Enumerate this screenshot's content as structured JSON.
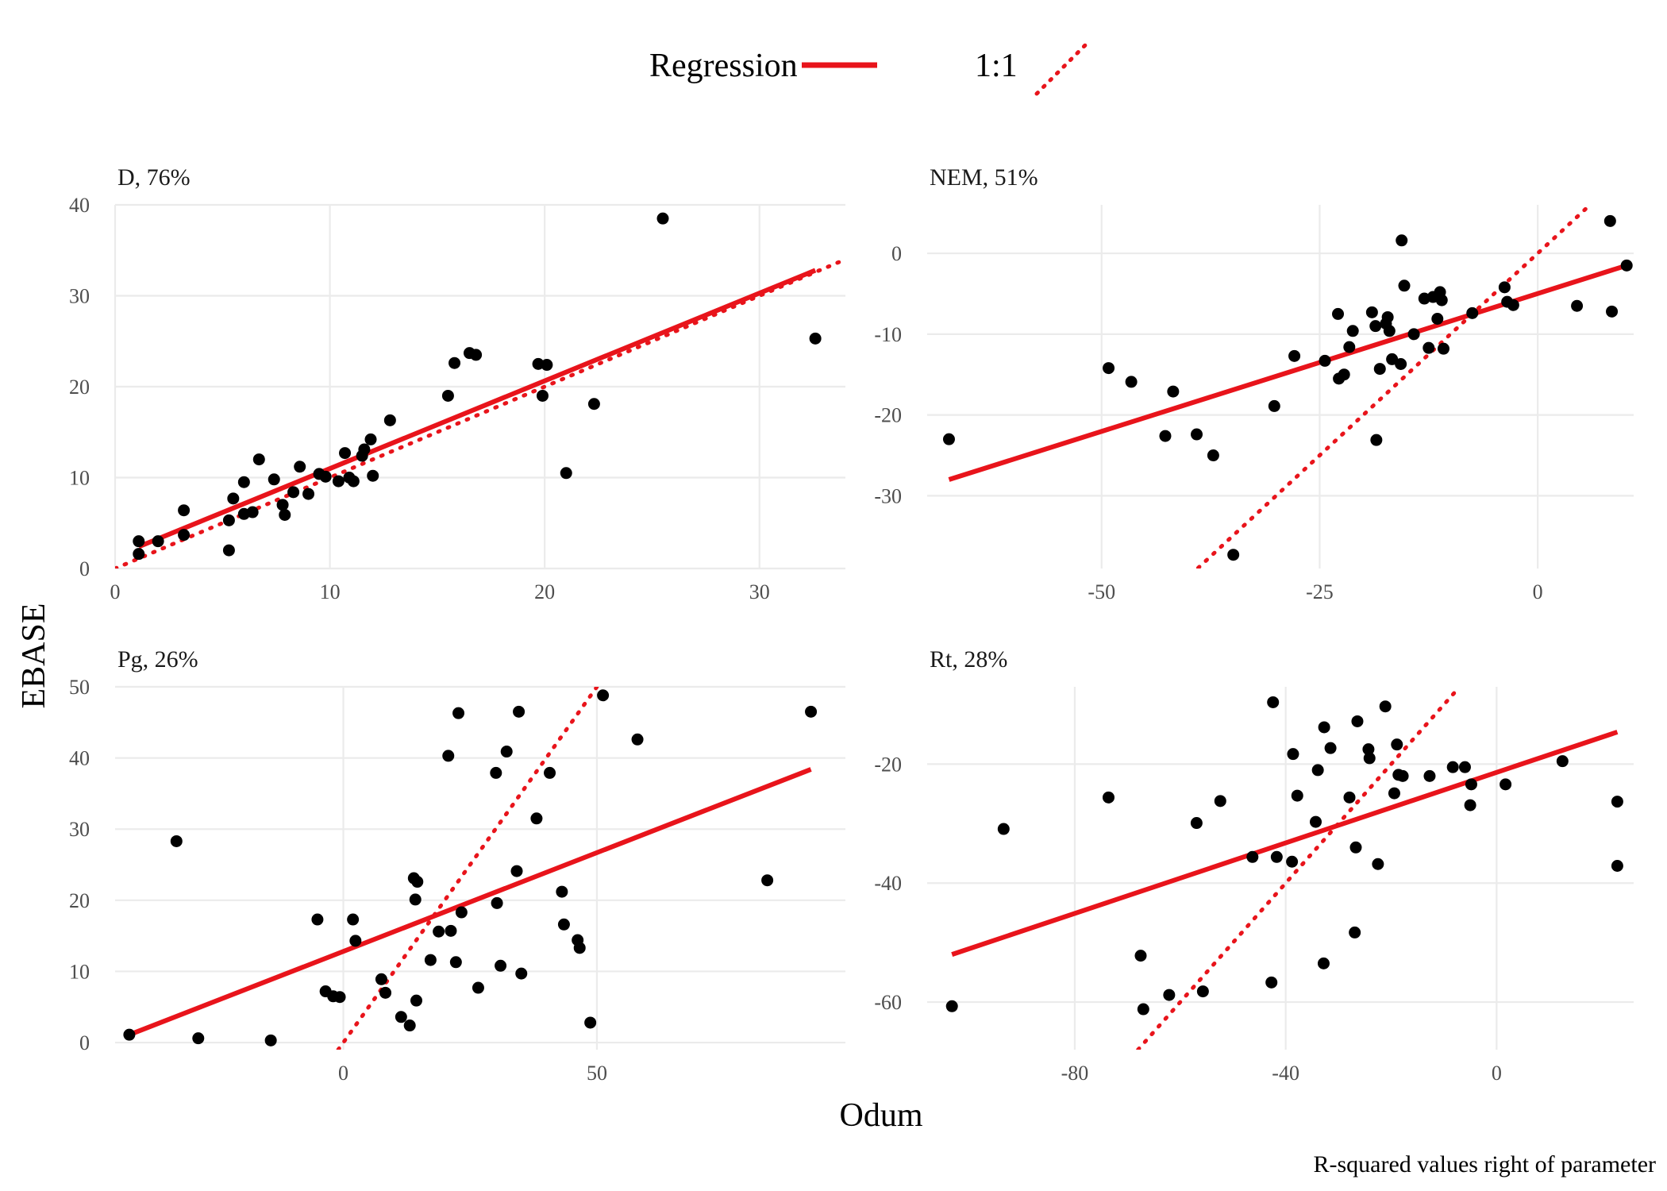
{
  "legend": {
    "items": [
      {
        "label": "Regression",
        "style": "solid"
      },
      {
        "label": "1:1",
        "style": "dotted"
      }
    ]
  },
  "axis_titles": {
    "x": "Odum",
    "y": "EBASE"
  },
  "caption": "R-squared values right of parameter",
  "colors": {
    "line": "#e8141b",
    "point": "#000000",
    "grid": "#ebebeb"
  },
  "chart_data": [
    {
      "type": "scatter",
      "title": "D, 76%",
      "xlabel": "Odum",
      "ylabel": "EBASE",
      "xlim": [
        0,
        34
      ],
      "ylim": [
        0,
        40
      ],
      "xticks": [
        0,
        10,
        20,
        30
      ],
      "yticks": [
        0,
        10,
        20,
        30,
        40
      ],
      "regression": {
        "x": [
          1.1,
          32.6
        ],
        "y": [
          2.4,
          32.8
        ]
      },
      "identity": [
        0,
        34
      ],
      "points": [
        [
          1.1,
          3.0
        ],
        [
          1.1,
          1.6
        ],
        [
          2.0,
          3.0
        ],
        [
          3.2,
          6.4
        ],
        [
          3.2,
          3.7
        ],
        [
          5.3,
          5.3
        ],
        [
          5.3,
          2.0
        ],
        [
          5.5,
          7.7
        ],
        [
          6.0,
          9.5
        ],
        [
          6.0,
          6.0
        ],
        [
          6.4,
          6.2
        ],
        [
          6.7,
          12.0
        ],
        [
          7.4,
          9.8
        ],
        [
          7.8,
          7.0
        ],
        [
          7.9,
          5.9
        ],
        [
          8.3,
          8.4
        ],
        [
          8.6,
          11.2
        ],
        [
          9.0,
          8.2
        ],
        [
          9.5,
          10.4
        ],
        [
          9.8,
          10.1
        ],
        [
          10.4,
          9.6
        ],
        [
          10.7,
          12.7
        ],
        [
          10.9,
          10.0
        ],
        [
          11.1,
          9.6
        ],
        [
          11.5,
          12.4
        ],
        [
          11.6,
          13.1
        ],
        [
          11.9,
          14.2
        ],
        [
          12.0,
          10.2
        ],
        [
          12.8,
          16.3
        ],
        [
          15.5,
          19.0
        ],
        [
          15.8,
          22.6
        ],
        [
          16.5,
          23.7
        ],
        [
          16.8,
          23.5
        ],
        [
          19.7,
          22.5
        ],
        [
          19.9,
          19.0
        ],
        [
          20.1,
          22.4
        ],
        [
          21.0,
          10.5
        ],
        [
          22.3,
          18.1
        ],
        [
          25.5,
          38.5
        ],
        [
          32.6,
          25.3
        ]
      ]
    },
    {
      "type": "scatter",
      "title": "NEM, 51%",
      "xlabel": "Odum",
      "ylabel": "EBASE",
      "xlim": [
        -70,
        11
      ],
      "ylim": [
        -39,
        6
      ],
      "xticks": [
        -50,
        -25,
        0
      ],
      "yticks": [
        -30,
        -20,
        -10,
        0
      ],
      "regression": {
        "x": [
          -67.5,
          10.2
        ],
        "y": [
          -28.0,
          -1.5
        ]
      },
      "identity": [
        -45,
        6
      ],
      "points": [
        [
          -67.5,
          -23.0
        ],
        [
          -49.2,
          -14.2
        ],
        [
          -46.6,
          -15.9
        ],
        [
          -42.7,
          -22.6
        ],
        [
          -41.8,
          -17.1
        ],
        [
          -39.1,
          -22.4
        ],
        [
          -37.2,
          -25.0
        ],
        [
          -34.9,
          -37.3
        ],
        [
          -30.2,
          -18.9
        ],
        [
          -27.9,
          -12.7
        ],
        [
          -24.4,
          -13.3
        ],
        [
          -22.9,
          -7.5
        ],
        [
          -22.8,
          -15.5
        ],
        [
          -22.2,
          -15.0
        ],
        [
          -21.6,
          -11.6
        ],
        [
          -21.2,
          -9.6
        ],
        [
          -19.0,
          -7.3
        ],
        [
          -18.6,
          -9.0
        ],
        [
          -18.5,
          -23.1
        ],
        [
          -18.1,
          -14.3
        ],
        [
          -17.4,
          -8.7
        ],
        [
          -17.2,
          -7.9
        ],
        [
          -17.0,
          -9.6
        ],
        [
          -16.7,
          -13.1
        ],
        [
          -15.7,
          -13.7
        ],
        [
          -15.6,
          1.6
        ],
        [
          -15.3,
          -4.0
        ],
        [
          -14.2,
          -10.0
        ],
        [
          -13.0,
          -5.6
        ],
        [
          -12.5,
          -11.7
        ],
        [
          -12.0,
          -5.4
        ],
        [
          -11.5,
          -8.1
        ],
        [
          -11.2,
          -4.8
        ],
        [
          -11.0,
          -5.8
        ],
        [
          -10.8,
          -11.8
        ],
        [
          -7.5,
          -7.4
        ],
        [
          -3.8,
          -4.2
        ],
        [
          -3.5,
          -6.0
        ],
        [
          -2.8,
          -6.4
        ],
        [
          4.5,
          -6.5
        ],
        [
          8.3,
          4.0
        ],
        [
          8.5,
          -7.2
        ],
        [
          10.2,
          -1.5
        ]
      ]
    },
    {
      "type": "scatter",
      "title": "Pg, 26%",
      "xlabel": "Odum",
      "ylabel": "EBASE",
      "xlim": [
        -45,
        99
      ],
      "ylim": [
        -1,
        50
      ],
      "xticks": [
        0,
        50
      ],
      "yticks": [
        0,
        10,
        20,
        30,
        40,
        50
      ],
      "regression": {
        "x": [
          -42.2,
          92.2
        ],
        "y": [
          1.1,
          38.4
        ]
      },
      "identity": [
        -1,
        50
      ],
      "points": [
        [
          -42.2,
          1.1
        ],
        [
          -32.9,
          28.3
        ],
        [
          -28.6,
          0.6
        ],
        [
          -14.3,
          0.3
        ],
        [
          -5.1,
          17.3
        ],
        [
          -3.5,
          7.2
        ],
        [
          -2.0,
          6.5
        ],
        [
          -0.7,
          6.4
        ],
        [
          1.9,
          17.3
        ],
        [
          2.4,
          14.3
        ],
        [
          7.5,
          8.9
        ],
        [
          8.3,
          7.0
        ],
        [
          11.4,
          3.6
        ],
        [
          13.1,
          2.4
        ],
        [
          13.9,
          23.1
        ],
        [
          14.2,
          20.1
        ],
        [
          14.4,
          5.9
        ],
        [
          14.6,
          22.6
        ],
        [
          17.2,
          11.6
        ],
        [
          18.8,
          15.6
        ],
        [
          20.7,
          40.3
        ],
        [
          21.2,
          15.7
        ],
        [
          22.2,
          11.3
        ],
        [
          22.7,
          46.3
        ],
        [
          23.3,
          18.3
        ],
        [
          26.6,
          7.7
        ],
        [
          30.1,
          37.9
        ],
        [
          30.3,
          19.6
        ],
        [
          31.0,
          10.8
        ],
        [
          32.2,
          40.9
        ],
        [
          34.2,
          24.1
        ],
        [
          34.6,
          46.5
        ],
        [
          35.1,
          9.7
        ],
        [
          38.1,
          31.5
        ],
        [
          40.7,
          37.9
        ],
        [
          43.1,
          21.2
        ],
        [
          43.5,
          16.6
        ],
        [
          46.2,
          14.4
        ],
        [
          46.6,
          13.3
        ],
        [
          48.7,
          2.8
        ],
        [
          51.2,
          48.8
        ],
        [
          58.0,
          42.6
        ],
        [
          83.6,
          22.8
        ],
        [
          92.2,
          46.5
        ]
      ]
    },
    {
      "type": "scatter",
      "title": "Rt, 28%",
      "xlabel": "Odum",
      "ylabel": "EBASE",
      "xlim": [
        -108,
        26
      ],
      "ylim": [
        -68,
        -7
      ],
      "xticks": [
        -80,
        -40,
        0
      ],
      "yticks": [
        -60,
        -40,
        -20
      ],
      "regression": {
        "x": [
          -103.3,
          22.9
        ],
        "y": [
          -52.0,
          -14.6
        ]
      },
      "identity": [
        -68,
        -7
      ],
      "points": [
        [
          -103.3,
          -60.7
        ],
        [
          -93.5,
          -30.9
        ],
        [
          -73.6,
          -25.6
        ],
        [
          -67.5,
          -52.2
        ],
        [
          -67.0,
          -61.2
        ],
        [
          -62.1,
          -58.8
        ],
        [
          -56.9,
          -29.9
        ],
        [
          -55.7,
          -58.2
        ],
        [
          -52.4,
          -26.2
        ],
        [
          -46.3,
          -35.6
        ],
        [
          -42.7,
          -56.7
        ],
        [
          -42.4,
          -9.6
        ],
        [
          -41.7,
          -35.6
        ],
        [
          -38.8,
          -36.4
        ],
        [
          -38.6,
          -18.3
        ],
        [
          -37.8,
          -25.3
        ],
        [
          -34.3,
          -29.7
        ],
        [
          -33.9,
          -21.0
        ],
        [
          -32.8,
          -53.5
        ],
        [
          -32.7,
          -13.8
        ],
        [
          -31.5,
          -17.3
        ],
        [
          -27.9,
          -25.6
        ],
        [
          -26.9,
          -48.3
        ],
        [
          -26.7,
          -34.0
        ],
        [
          -26.4,
          -12.8
        ],
        [
          -24.3,
          -17.5
        ],
        [
          -24.1,
          -19.0
        ],
        [
          -22.5,
          -36.8
        ],
        [
          -21.1,
          -10.3
        ],
        [
          -19.4,
          -24.9
        ],
        [
          -18.9,
          -16.7
        ],
        [
          -18.6,
          -21.8
        ],
        [
          -17.8,
          -22.0
        ],
        [
          -12.7,
          -22.0
        ],
        [
          -8.3,
          -20.5
        ],
        [
          -6.0,
          -20.5
        ],
        [
          -5.0,
          -26.9
        ],
        [
          -4.8,
          -23.4
        ],
        [
          1.7,
          -23.4
        ],
        [
          12.5,
          -19.5
        ],
        [
          22.9,
          -26.3
        ],
        [
          22.9,
          -37.1
        ]
      ]
    }
  ]
}
